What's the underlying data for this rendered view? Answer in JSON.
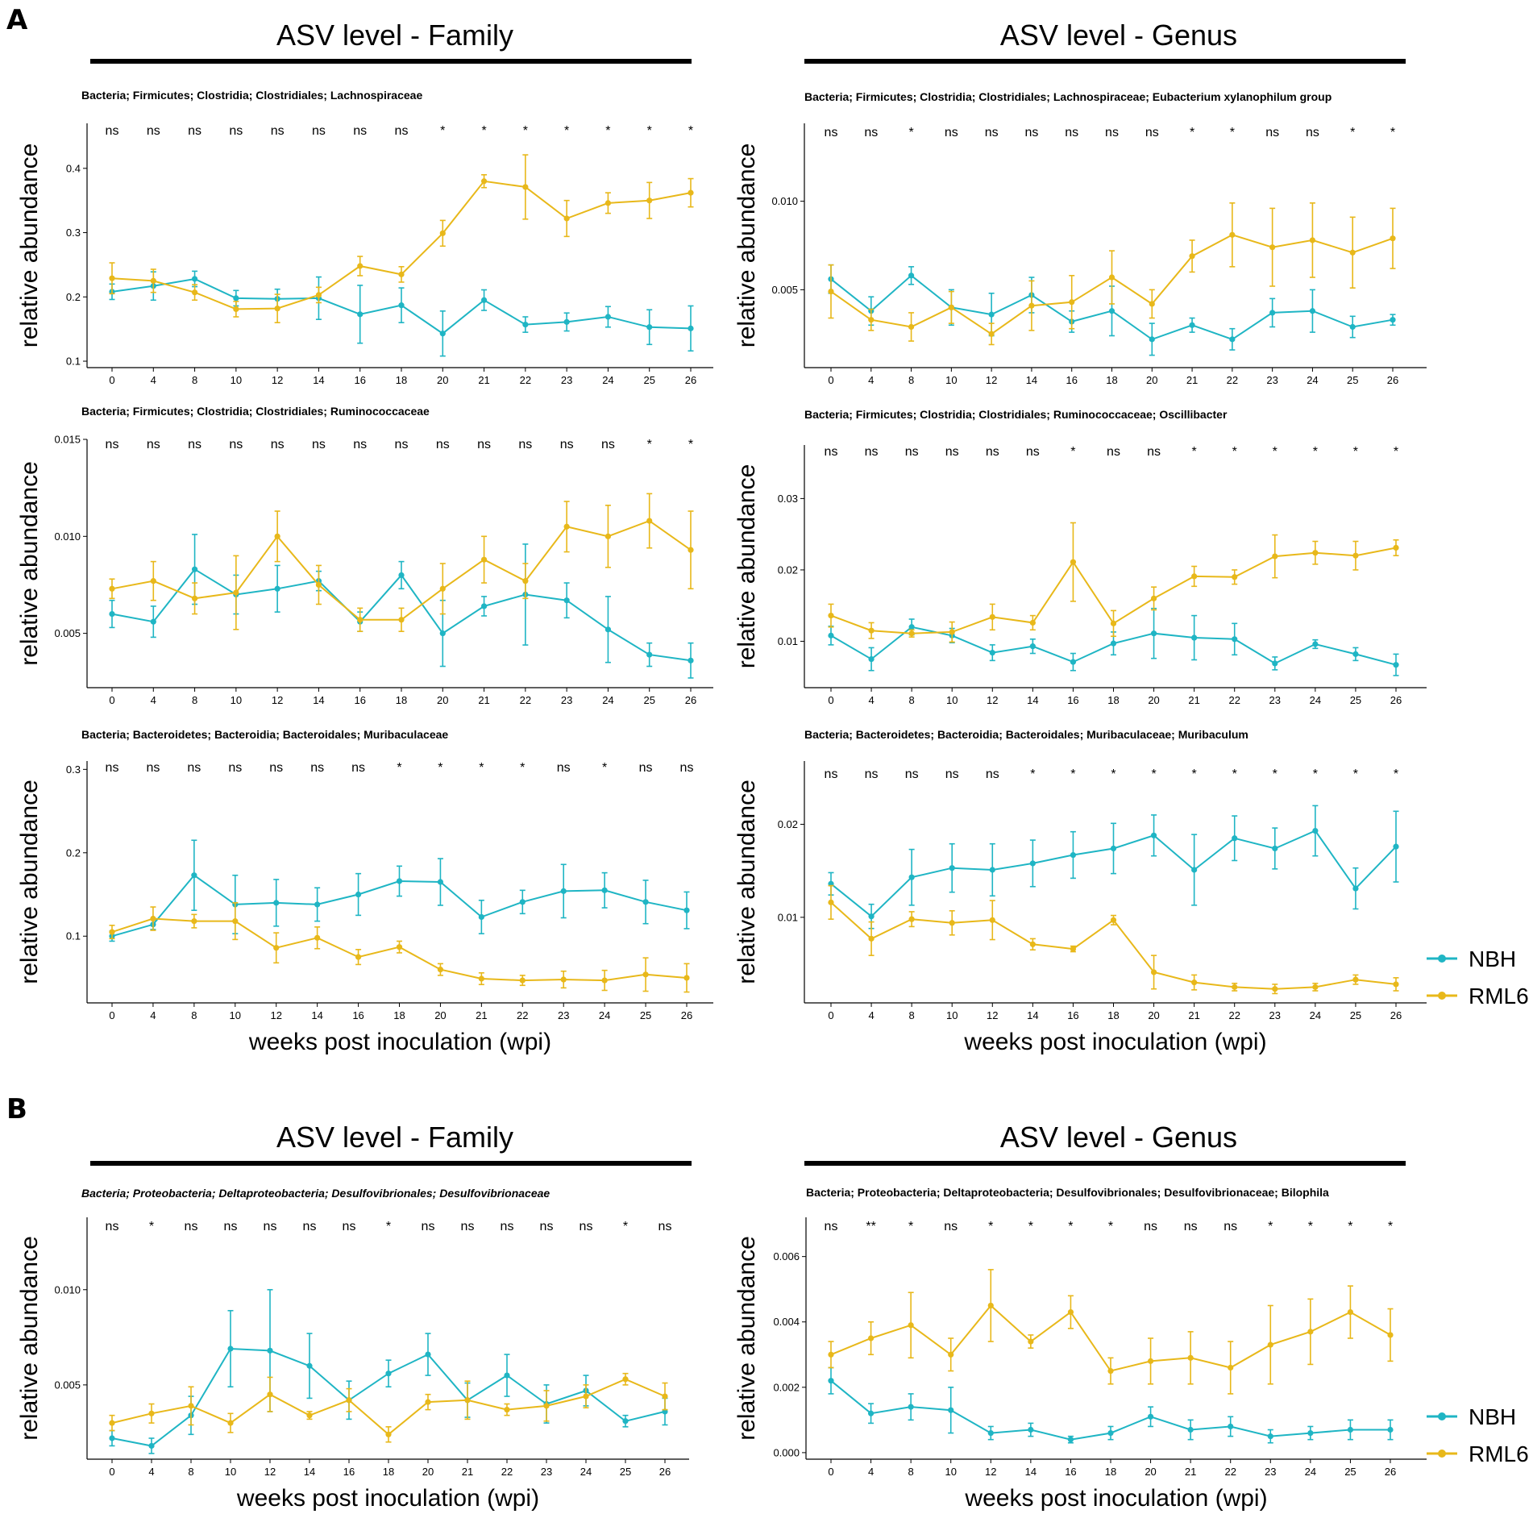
{
  "panel_labels": [
    "A",
    "B"
  ],
  "sections": [
    {
      "label": "A",
      "titles": [
        "ASV level - Family",
        "ASV level - Genus"
      ]
    },
    {
      "label": "B",
      "titles": [
        "ASV level - Family",
        "ASV level - Genus"
      ]
    }
  ],
  "legend": {
    "items": [
      {
        "name": "NBH",
        "color": "#1fb5c4"
      },
      {
        "name": "RML6",
        "color": "#e8b81a"
      }
    ]
  },
  "colors": {
    "NBH": "#1fb5c4",
    "RML6": "#e8b81a"
  },
  "chart_data": [
    {
      "type": "line",
      "title": "Bacteria; Firmicutes; Clostridia; Clostridiales; Lachnospiraceae",
      "xlabel": "",
      "ylabel": "relative abundance",
      "categories": [
        "0",
        "4",
        "8",
        "10",
        "12",
        "14",
        "16",
        "18",
        "20",
        "21",
        "22",
        "23",
        "24",
        "25",
        "26"
      ],
      "ylim": [
        0.09,
        0.47
      ],
      "yticks": [
        0.1,
        0.2,
        0.3,
        0.4
      ],
      "ytick_labels": [
        "0.1",
        "0.2",
        "0.3",
        "0.4"
      ],
      "significance": [
        "ns",
        "ns",
        "ns",
        "ns",
        "ns",
        "ns",
        "ns",
        "ns",
        "*",
        "*",
        "*",
        "*",
        "*",
        "*",
        "*"
      ],
      "series": [
        {
          "name": "NBH",
          "values": [
            0.208,
            0.217,
            0.228,
            0.198,
            0.197,
            0.198,
            0.173,
            0.187,
            0.143,
            0.195,
            0.157,
            0.161,
            0.169,
            0.153,
            0.151
          ],
          "errors": [
            0.012,
            0.022,
            0.012,
            0.012,
            0.015,
            0.033,
            0.045,
            0.027,
            0.035,
            0.016,
            0.012,
            0.014,
            0.016,
            0.027,
            0.035
          ]
        },
        {
          "name": "RML6",
          "values": [
            0.229,
            0.225,
            0.207,
            0.181,
            0.182,
            0.203,
            0.248,
            0.235,
            0.299,
            0.38,
            0.371,
            0.322,
            0.346,
            0.35,
            0.362
          ],
          "errors": [
            0.024,
            0.018,
            0.012,
            0.012,
            0.022,
            0.012,
            0.015,
            0.012,
            0.02,
            0.01,
            0.05,
            0.028,
            0.016,
            0.028,
            0.022
          ]
        }
      ]
    },
    {
      "type": "line",
      "title": "Bacteria; Firmicutes; Clostridia; Clostridiales; Lachnospiraceae; Eubacterium xylanophilum group",
      "xlabel": "",
      "ylabel": "relative abundance",
      "categories": [
        "0",
        "4",
        "8",
        "10",
        "12",
        "14",
        "16",
        "18",
        "20",
        "21",
        "22",
        "23",
        "24",
        "25",
        "26"
      ],
      "ylim": [
        0.0006,
        0.0144
      ],
      "yticks": [
        0.005,
        0.01
      ],
      "ytick_labels": [
        "0.005",
        "0.010"
      ],
      "significance": [
        "ns",
        "ns",
        "*",
        "ns",
        "ns",
        "ns",
        "ns",
        "ns",
        "ns",
        "*",
        "*",
        "ns",
        "ns",
        "*",
        "*"
      ],
      "series": [
        {
          "name": "NBH",
          "values": [
            0.0056,
            0.0038,
            0.0058,
            0.004,
            0.0036,
            0.0047,
            0.0032,
            0.0038,
            0.0022,
            0.003,
            0.0022,
            0.0037,
            0.0038,
            0.0029,
            0.0033
          ],
          "errors": [
            0.0008,
            0.0008,
            0.0005,
            0.001,
            0.0012,
            0.001,
            0.0006,
            0.0014,
            0.0009,
            0.0004,
            0.0006,
            0.0008,
            0.0012,
            0.0006,
            0.0003
          ]
        },
        {
          "name": "RML6",
          "values": [
            0.0049,
            0.0033,
            0.0029,
            0.004,
            0.0025,
            0.0041,
            0.0043,
            0.0057,
            0.0042,
            0.0069,
            0.0081,
            0.0074,
            0.0078,
            0.0071,
            0.0079
          ],
          "errors": [
            0.0015,
            0.0006,
            0.0008,
            0.0009,
            0.0006,
            0.0014,
            0.0015,
            0.0015,
            0.0008,
            0.0009,
            0.0018,
            0.0022,
            0.0021,
            0.002,
            0.0017
          ]
        }
      ]
    },
    {
      "type": "line",
      "title": "Bacteria; Firmicutes; Clostridia; Clostridiales; Ruminococcaceae",
      "xlabel": "",
      "ylabel": "relative abundance",
      "categories": [
        "0",
        "4",
        "8",
        "10",
        "12",
        "14",
        "16",
        "18",
        "20",
        "21",
        "22",
        "23",
        "24",
        "25",
        "26"
      ],
      "ylim": [
        0.0022,
        0.015
      ],
      "yticks": [
        0.005,
        0.01,
        0.015
      ],
      "ytick_labels": [
        "0.005",
        "0.010",
        "0.015"
      ],
      "significance": [
        "ns",
        "ns",
        "ns",
        "ns",
        "ns",
        "ns",
        "ns",
        "ns",
        "ns",
        "ns",
        "ns",
        "ns",
        "ns",
        "*",
        "*"
      ],
      "series": [
        {
          "name": "NBH",
          "values": [
            0.006,
            0.0056,
            0.0083,
            0.007,
            0.0073,
            0.0077,
            0.0056,
            0.008,
            0.005,
            0.0064,
            0.007,
            0.0067,
            0.0052,
            0.0039,
            0.0036
          ],
          "errors": [
            0.0007,
            0.0008,
            0.0018,
            0.001,
            0.0012,
            0.0005,
            0.0005,
            0.0007,
            0.0017,
            0.0005,
            0.0026,
            0.0009,
            0.0017,
            0.0006,
            0.0009
          ]
        },
        {
          "name": "RML6",
          "values": [
            0.0073,
            0.0077,
            0.0068,
            0.0071,
            0.01,
            0.0075,
            0.0057,
            0.0057,
            0.0073,
            0.0088,
            0.0077,
            0.0105,
            0.01,
            0.0108,
            0.0093
          ],
          "errors": [
            0.0005,
            0.001,
            0.0008,
            0.0019,
            0.0013,
            0.001,
            0.0006,
            0.0006,
            0.0013,
            0.0012,
            0.0009,
            0.0013,
            0.0016,
            0.0014,
            0.002
          ]
        }
      ]
    },
    {
      "type": "line",
      "title": "Bacteria; Firmicutes; Clostridia; Clostridiales; Ruminococcaceae; Oscillibacter",
      "xlabel": "",
      "ylabel": "relative abundance",
      "categories": [
        "0",
        "4",
        "8",
        "10",
        "12",
        "14",
        "16",
        "18",
        "20",
        "21",
        "22",
        "23",
        "24",
        "25",
        "26"
      ],
      "ylim": [
        0.0035,
        0.0375
      ],
      "yticks": [
        0.01,
        0.02,
        0.03
      ],
      "ytick_labels": [
        "0.01",
        "0.02",
        "0.03"
      ],
      "significance": [
        "ns",
        "ns",
        "ns",
        "ns",
        "ns",
        "ns",
        "*",
        "ns",
        "ns",
        "*",
        "*",
        "*",
        "*",
        "*",
        "*"
      ],
      "series": [
        {
          "name": "NBH",
          "values": [
            0.0108,
            0.0075,
            0.012,
            0.0108,
            0.0084,
            0.0093,
            0.0071,
            0.0097,
            0.0111,
            0.0105,
            0.0103,
            0.0069,
            0.0096,
            0.0082,
            0.0067
          ],
          "errors": [
            0.0013,
            0.0016,
            0.0011,
            0.001,
            0.0011,
            0.001,
            0.0012,
            0.0016,
            0.0035,
            0.0031,
            0.0022,
            0.0009,
            0.0006,
            0.0009,
            0.0015
          ]
        },
        {
          "name": "RML6",
          "values": [
            0.0136,
            0.0115,
            0.0111,
            0.0113,
            0.0134,
            0.0126,
            0.0211,
            0.0125,
            0.016,
            0.0191,
            0.019,
            0.0219,
            0.0224,
            0.022,
            0.0231
          ],
          "errors": [
            0.0016,
            0.0011,
            0.0005,
            0.0014,
            0.0018,
            0.001,
            0.0055,
            0.0018,
            0.0016,
            0.0014,
            0.001,
            0.003,
            0.0016,
            0.002,
            0.0011
          ]
        }
      ]
    },
    {
      "type": "line",
      "title": "Bacteria; Bacteroidetes; Bacteroidia; Bacteroidales; Muribaculaceae",
      "xlabel": "weeks post inoculation (wpi)",
      "ylabel": "relative abundance",
      "categories": [
        "0",
        "4",
        "8",
        "10",
        "12",
        "14",
        "16",
        "18",
        "20",
        "21",
        "22",
        "23",
        "24",
        "25",
        "26"
      ],
      "ylim": [
        0.02,
        0.31
      ],
      "yticks": [
        0.1,
        0.2,
        0.3
      ],
      "ytick_labels": [
        "0.1",
        "0.2",
        "0.3"
      ],
      "significance": [
        "ns",
        "ns",
        "ns",
        "ns",
        "ns",
        "ns",
        "ns",
        "*",
        "*",
        "*",
        "*",
        "ns",
        "*",
        "ns",
        "ns"
      ],
      "series": [
        {
          "name": "NBH",
          "values": [
            0.1,
            0.114,
            0.173,
            0.138,
            0.14,
            0.138,
            0.15,
            0.166,
            0.165,
            0.123,
            0.141,
            0.154,
            0.155,
            0.141,
            0.131
          ],
          "errors": [
            0.006,
            0.006,
            0.042,
            0.035,
            0.028,
            0.02,
            0.025,
            0.018,
            0.028,
            0.02,
            0.014,
            0.032,
            0.021,
            0.026,
            0.022
          ]
        },
        {
          "name": "RML6",
          "values": [
            0.105,
            0.121,
            0.118,
            0.118,
            0.086,
            0.098,
            0.075,
            0.087,
            0.06,
            0.049,
            0.047,
            0.048,
            0.047,
            0.054,
            0.05
          ],
          "errors": [
            0.008,
            0.014,
            0.008,
            0.022,
            0.018,
            0.013,
            0.009,
            0.007,
            0.007,
            0.007,
            0.006,
            0.01,
            0.012,
            0.02,
            0.017
          ]
        }
      ]
    },
    {
      "type": "line",
      "title": "Bacteria; Bacteroidetes; Bacteroidia; Bacteroidales; Muribaculaceae; Muribaculum",
      "xlabel": "weeks post inoculation (wpi)",
      "ylabel": "relative abundance",
      "categories": [
        "0",
        "4",
        "8",
        "10",
        "12",
        "14",
        "16",
        "18",
        "20",
        "21",
        "22",
        "23",
        "24",
        "25",
        "26"
      ],
      "ylim": [
        0.0008,
        0.0268
      ],
      "yticks": [
        0.01,
        0.02
      ],
      "ytick_labels": [
        "0.01",
        "0.02"
      ],
      "significance": [
        "ns",
        "ns",
        "ns",
        "ns",
        "ns",
        "*",
        "*",
        "*",
        "*",
        "*",
        "*",
        "*",
        "*",
        "*",
        "*"
      ],
      "series": [
        {
          "name": "NBH",
          "values": [
            0.0136,
            0.0101,
            0.0143,
            0.0153,
            0.0151,
            0.0158,
            0.0167,
            0.0174,
            0.0188,
            0.0151,
            0.0185,
            0.0174,
            0.0193,
            0.0131,
            0.0176
          ],
          "errors": [
            0.0012,
            0.0013,
            0.003,
            0.0026,
            0.0028,
            0.0025,
            0.0025,
            0.0027,
            0.0022,
            0.0038,
            0.0024,
            0.0022,
            0.0027,
            0.0022,
            0.0038
          ]
        },
        {
          "name": "RML6",
          "values": [
            0.0116,
            0.0077,
            0.0098,
            0.0094,
            0.0097,
            0.0071,
            0.0066,
            0.0097,
            0.0041,
            0.003,
            0.0025,
            0.0023,
            0.0025,
            0.0033,
            0.0028
          ],
          "errors": [
            0.0018,
            0.0018,
            0.0008,
            0.0013,
            0.0021,
            0.0006,
            0.0003,
            0.0005,
            0.0018,
            0.0008,
            0.0004,
            0.0005,
            0.0004,
            0.0005,
            0.0007
          ]
        }
      ]
    },
    {
      "type": "line",
      "title": "Bacteria; Proteobacteria; Deltaproteobacteria; Desulfovibrionales; Desulfovibrionaceae",
      "title_italic": true,
      "xlabel": "weeks post inoculation (wpi)",
      "ylabel": "relative abundance",
      "categories": [
        "0",
        "4",
        "8",
        "10",
        "12",
        "14",
        "16",
        "18",
        "20",
        "21",
        "22",
        "23",
        "24",
        "25",
        "26"
      ],
      "ylim": [
        0.0011,
        0.0138
      ],
      "yticks": [
        0.005,
        0.01
      ],
      "ytick_labels": [
        "0.005",
        "0.010"
      ],
      "significance": [
        "ns",
        "*",
        "ns",
        "ns",
        "ns",
        "ns",
        "ns",
        "*",
        "ns",
        "ns",
        "ns",
        "ns",
        "ns",
        "*",
        "ns"
      ],
      "series": [
        {
          "name": "NBH",
          "values": [
            0.0022,
            0.0018,
            0.0034,
            0.0069,
            0.0068,
            0.006,
            0.0042,
            0.0056,
            0.0066,
            0.0042,
            0.0055,
            0.004,
            0.0047,
            0.0031,
            0.0036
          ],
          "errors": [
            0.0004,
            0.0004,
            0.001,
            0.002,
            0.0032,
            0.0017,
            0.001,
            0.0007,
            0.0011,
            0.0009,
            0.0011,
            0.001,
            0.0008,
            0.0003,
            0.0007
          ]
        },
        {
          "name": "RML6",
          "values": [
            0.003,
            0.0035,
            0.0039,
            0.003,
            0.0045,
            0.0034,
            0.0042,
            0.0024,
            0.0041,
            0.0042,
            0.0037,
            0.0039,
            0.0044,
            0.0053,
            0.0044
          ],
          "errors": [
            0.0004,
            0.0005,
            0.001,
            0.0005,
            0.0009,
            0.0002,
            0.0006,
            0.0004,
            0.0004,
            0.001,
            0.0003,
            0.0008,
            0.0006,
            0.0003,
            0.0007
          ]
        }
      ]
    },
    {
      "type": "line",
      "title": "Bacteria; Proteobacteria; Deltaproteobacteria; Desulfovibrionales; Desulfovibrionaceae; Bilophila",
      "xlabel": "weeks post inoculation (wpi)",
      "ylabel": "relative abundance",
      "categories": [
        "0",
        "4",
        "8",
        "10",
        "12",
        "14",
        "16",
        "18",
        "20",
        "21",
        "22",
        "23",
        "24",
        "25",
        "26"
      ],
      "ylim": [
        -0.0002,
        0.0072
      ],
      "yticks": [
        0.0,
        0.002,
        0.004,
        0.006
      ],
      "ytick_labels": [
        "0.000",
        "0.002",
        "0.004",
        "0.006"
      ],
      "significance": [
        "ns",
        "**",
        "*",
        "ns",
        "*",
        "*",
        "*",
        "*",
        "ns",
        "ns",
        "ns",
        "*",
        "*",
        "*",
        "*"
      ],
      "series": [
        {
          "name": "NBH",
          "values": [
            0.0022,
            0.0012,
            0.0014,
            0.0013,
            0.0006,
            0.0007,
            0.0004,
            0.0006,
            0.0011,
            0.0007,
            0.0008,
            0.0005,
            0.0006,
            0.0007,
            0.0007
          ],
          "errors": [
            0.0004,
            0.0003,
            0.0004,
            0.0007,
            0.0002,
            0.0002,
            0.0001,
            0.0002,
            0.0003,
            0.0003,
            0.0003,
            0.0002,
            0.0002,
            0.0003,
            0.0003
          ]
        },
        {
          "name": "RML6",
          "values": [
            0.003,
            0.0035,
            0.0039,
            0.003,
            0.0045,
            0.0034,
            0.0043,
            0.0025,
            0.0028,
            0.0029,
            0.0026,
            0.0033,
            0.0037,
            0.0043,
            0.0036
          ],
          "errors": [
            0.0004,
            0.0005,
            0.001,
            0.0005,
            0.0011,
            0.0002,
            0.0005,
            0.0004,
            0.0007,
            0.0008,
            0.0008,
            0.0012,
            0.001,
            0.0008,
            0.0008
          ]
        }
      ]
    }
  ]
}
